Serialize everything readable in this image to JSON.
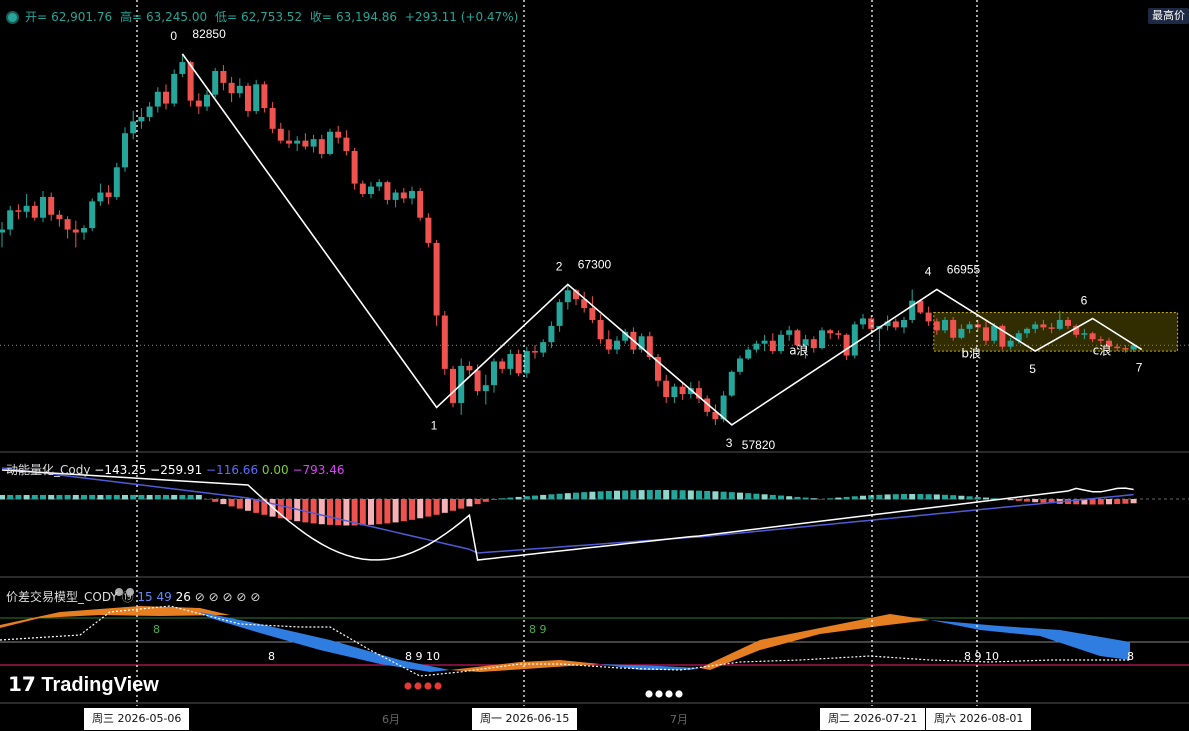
{
  "ohlc": {
    "open_label": "开=",
    "open": "62,901.76",
    "high_label": "高=",
    "high": "63,245.00",
    "low_label": "低=",
    "low": "62,753.52",
    "close_label": "收=",
    "close": "63,194.86",
    "change": "+293.11 (+0.47%)"
  },
  "max_badge": "最高价",
  "colors": {
    "up": "#26a69a",
    "down": "#ef5350",
    "wave": "#ffffff",
    "box": "#c8b400"
  },
  "chart_data": [
    {
      "type": "candlestick",
      "title": "",
      "y_range": [
        56800,
        84600
      ],
      "x_range_dates": [
        "2026-04-08",
        "2026-08-16"
      ],
      "candles": [
        [
          70800,
          71500,
          69800,
          71000
        ],
        [
          71000,
          72600,
          70600,
          72300
        ],
        [
          72300,
          72700,
          71700,
          72200
        ],
        [
          72200,
          73400,
          71800,
          72600
        ],
        [
          72600,
          72900,
          71600,
          71800
        ],
        [
          71800,
          73600,
          71500,
          73200
        ],
        [
          73200,
          73500,
          71600,
          72000
        ],
        [
          72000,
          72300,
          71200,
          71700
        ],
        [
          71700,
          71900,
          70400,
          71000
        ],
        [
          71000,
          71600,
          69800,
          70800
        ],
        [
          70800,
          71300,
          70300,
          71100
        ],
        [
          71100,
          73100,
          70900,
          72900
        ],
        [
          72900,
          74100,
          72600,
          73500
        ],
        [
          73500,
          74000,
          72700,
          73200
        ],
        [
          73200,
          75500,
          73000,
          75200
        ],
        [
          75200,
          77900,
          74900,
          77500
        ],
        [
          77500,
          79000,
          77100,
          78300
        ],
        [
          78300,
          79200,
          77800,
          78600
        ],
        [
          78600,
          79600,
          78300,
          79300
        ],
        [
          79300,
          80600,
          78900,
          80300
        ],
        [
          80300,
          80800,
          79100,
          79500
        ],
        [
          79500,
          81800,
          79300,
          81500
        ],
        [
          81500,
          82850,
          81300,
          82300
        ],
        [
          82300,
          82400,
          79300,
          79700
        ],
        [
          79700,
          80200,
          78800,
          79300
        ],
        [
          79300,
          80400,
          79000,
          80100
        ],
        [
          80100,
          81900,
          79900,
          81700
        ],
        [
          81700,
          82100,
          80400,
          80900
        ],
        [
          80900,
          81300,
          79600,
          80200
        ],
        [
          80200,
          81200,
          79900,
          80700
        ],
        [
          80700,
          80900,
          78600,
          79000
        ],
        [
          79000,
          81100,
          78800,
          80800
        ],
        [
          80800,
          81000,
          78900,
          79200
        ],
        [
          79200,
          79600,
          77500,
          77800
        ],
        [
          77800,
          78200,
          76800,
          77000
        ],
        [
          77000,
          77700,
          76500,
          76800
        ],
        [
          76800,
          77300,
          76300,
          77000
        ],
        [
          77000,
          77500,
          76400,
          76600
        ],
        [
          76600,
          77400,
          76200,
          77100
        ],
        [
          77100,
          77400,
          75800,
          76100
        ],
        [
          76100,
          77800,
          76000,
          77600
        ],
        [
          77600,
          78000,
          76800,
          77200
        ],
        [
          77200,
          77700,
          76000,
          76300
        ],
        [
          76300,
          76500,
          73700,
          74100
        ],
        [
          74100,
          74300,
          73200,
          73400
        ],
        [
          73400,
          74200,
          73100,
          73900
        ],
        [
          73900,
          74400,
          73600,
          74200
        ],
        [
          74200,
          74300,
          72700,
          73000
        ],
        [
          73000,
          73700,
          72500,
          73500
        ],
        [
          73500,
          73800,
          72800,
          73100
        ],
        [
          73100,
          73900,
          72700,
          73600
        ],
        [
          73600,
          73800,
          71600,
          71800
        ],
        [
          71800,
          72100,
          69800,
          70100
        ],
        [
          70100,
          70300,
          64500,
          65200
        ],
        [
          65200,
          65500,
          61200,
          61600
        ],
        [
          61600,
          61800,
          59000,
          59300
        ],
        [
          59300,
          62300,
          58500,
          61800
        ],
        [
          61800,
          62100,
          61200,
          61500
        ],
        [
          61500,
          61900,
          59800,
          60100
        ],
        [
          60100,
          61200,
          59200,
          60500
        ],
        [
          60500,
          62300,
          60000,
          62100
        ],
        [
          62100,
          62300,
          61300,
          61600
        ],
        [
          61600,
          62900,
          61200,
          62600
        ],
        [
          62600,
          62900,
          61100,
          61300
        ],
        [
          61300,
          63100,
          61000,
          62800
        ],
        [
          62800,
          63200,
          62300,
          62700
        ],
        [
          62700,
          63600,
          62400,
          63400
        ],
        [
          63400,
          64800,
          63000,
          64500
        ],
        [
          64500,
          66300,
          64100,
          66100
        ],
        [
          66100,
          67300,
          65600,
          66900
        ],
        [
          66900,
          67000,
          65900,
          66300
        ],
        [
          66300,
          66800,
          65400,
          65700
        ],
        [
          65700,
          66500,
          64700,
          64900
        ],
        [
          64900,
          65300,
          63300,
          63600
        ],
        [
          63600,
          64200,
          62600,
          62900
        ],
        [
          62900,
          63800,
          62600,
          63500
        ],
        [
          63500,
          64300,
          63300,
          64100
        ],
        [
          64100,
          64400,
          62600,
          62900
        ],
        [
          62900,
          64000,
          62700,
          63800
        ],
        [
          63800,
          64100,
          62200,
          62400
        ],
        [
          62400,
          62600,
          60400,
          60800
        ],
        [
          60800,
          61200,
          59300,
          59700
        ],
        [
          59700,
          60600,
          59300,
          60400
        ],
        [
          60400,
          60700,
          59500,
          59900
        ],
        [
          59900,
          60700,
          59600,
          60300
        ],
        [
          60300,
          60800,
          59300,
          59600
        ],
        [
          59600,
          59800,
          58400,
          58700
        ],
        [
          58700,
          59200,
          57820,
          58200
        ],
        [
          58200,
          60100,
          58000,
          59800
        ],
        [
          59800,
          61500,
          59700,
          61400
        ],
        [
          61400,
          62500,
          61200,
          62300
        ],
        [
          62300,
          63100,
          62200,
          62900
        ],
        [
          62900,
          63500,
          62700,
          63300
        ],
        [
          63300,
          63900,
          62800,
          63500
        ],
        [
          63500,
          64000,
          62600,
          62800
        ],
        [
          62800,
          64200,
          62600,
          63900
        ],
        [
          63900,
          64500,
          63500,
          64200
        ],
        [
          64200,
          64300,
          62900,
          63200
        ],
        [
          63200,
          63900,
          62300,
          63600
        ],
        [
          63600,
          63800,
          62700,
          63000
        ],
        [
          63000,
          64400,
          62900,
          64200
        ],
        [
          64200,
          64300,
          63600,
          64000
        ],
        [
          64000,
          64200,
          63600,
          63900
        ],
        [
          63900,
          64000,
          62200,
          62500
        ],
        [
          62500,
          64800,
          62300,
          64600
        ],
        [
          64600,
          65300,
          64300,
          65000
        ],
        [
          65000,
          65200,
          64100,
          64300
        ],
        [
          64300,
          64400,
          62800,
          64500
        ],
        [
          64500,
          65200,
          64200,
          64800
        ],
        [
          64800,
          65000,
          64200,
          64400
        ],
        [
          64400,
          65100,
          64000,
          64900
        ],
        [
          64900,
          66955,
          64700,
          66200
        ],
        [
          66200,
          66300,
          65300,
          65400
        ],
        [
          65400,
          65800,
          64500,
          64800
        ],
        [
          64800,
          65000,
          63900,
          64200
        ],
        [
          64200,
          65100,
          64000,
          64900
        ],
        [
          64900,
          65100,
          63500,
          63700
        ],
        [
          63700,
          64600,
          63600,
          64300
        ],
        [
          64300,
          64800,
          64000,
          64600
        ],
        [
          64600,
          64900,
          64200,
          64400
        ],
        [
          64400,
          64800,
          63200,
          63500
        ],
        [
          63500,
          64700,
          63300,
          64500
        ],
        [
          64500,
          64600,
          62900,
          63100
        ],
        [
          63100,
          63700,
          62900,
          63500
        ],
        [
          63500,
          64200,
          63300,
          64000
        ],
        [
          64000,
          64400,
          63700,
          64300
        ],
        [
          64300,
          64800,
          64000,
          64600
        ],
        [
          64600,
          64900,
          64200,
          64400
        ],
        [
          64400,
          64700,
          64000,
          64300
        ],
        [
          64300,
          65500,
          64200,
          64900
        ],
        [
          64900,
          65100,
          64300,
          64500
        ],
        [
          64500,
          64600,
          63700,
          63900
        ],
        [
          63900,
          64300,
          63600,
          64000
        ],
        [
          64000,
          64100,
          63400,
          63600
        ],
        [
          63600,
          63800,
          63300,
          63500
        ],
        [
          63500,
          63700,
          62900,
          63100
        ],
        [
          63100,
          63300,
          62800,
          63000
        ],
        [
          63000,
          63200,
          62700,
          62900
        ],
        [
          62901.76,
          63245,
          62753.52,
          63194.86
        ]
      ],
      "waves": [
        {
          "label": "0",
          "value": "82850"
        },
        {
          "label": "1",
          "value": ""
        },
        {
          "label": "2",
          "value": "67300"
        },
        {
          "label": "3",
          "value": "57820"
        },
        {
          "label": "4",
          "value": "66955"
        },
        {
          "label": "5",
          "value": ""
        },
        {
          "label": "6",
          "value": ""
        },
        {
          "label": "7",
          "value": ""
        }
      ],
      "wave_path": [
        [
          22,
          82850
        ],
        [
          53,
          59000
        ],
        [
          69,
          67300
        ],
        [
          89,
          57820
        ],
        [
          114,
          66955
        ],
        [
          126,
          62800
        ],
        [
          133,
          65000
        ],
        [
          139,
          62900
        ]
      ],
      "abc_path": [
        [
          114,
          66955
        ],
        [
          120,
          64800
        ],
        [
          126,
          62800
        ]
      ],
      "annotations": [
        "a浪",
        "b浪",
        "c浪"
      ],
      "current_price": 63194.86,
      "box": {
        "from_index": 114,
        "to_index": 143,
        "low": 62800,
        "high": 65400
      }
    },
    {
      "type": "macd",
      "title": "动能量化_Cody",
      "values": [
        "−143.25",
        "−259.91",
        "−116.66",
        "0.00",
        "−793.46"
      ]
    },
    {
      "type": "oscillator",
      "title": "价差交易模型_CODY",
      "values": [
        "⑲",
        "15",
        "49",
        "26",
        "⊘",
        "⊘",
        "⊘",
        "⊘",
        "⊘"
      ],
      "markers_top": [
        "8",
        "8 9"
      ],
      "markers_bottom": [
        "8",
        "8 9 10",
        "8 9 10",
        "8"
      ]
    }
  ],
  "x_axis": {
    "labels": [
      "周三 2026-05-06",
      "周一 2026-06-15",
      "周二 2026-07-21",
      "周六 2026-08-01"
    ],
    "months": [
      "6月",
      "7月"
    ]
  },
  "watermark": "TradingView"
}
